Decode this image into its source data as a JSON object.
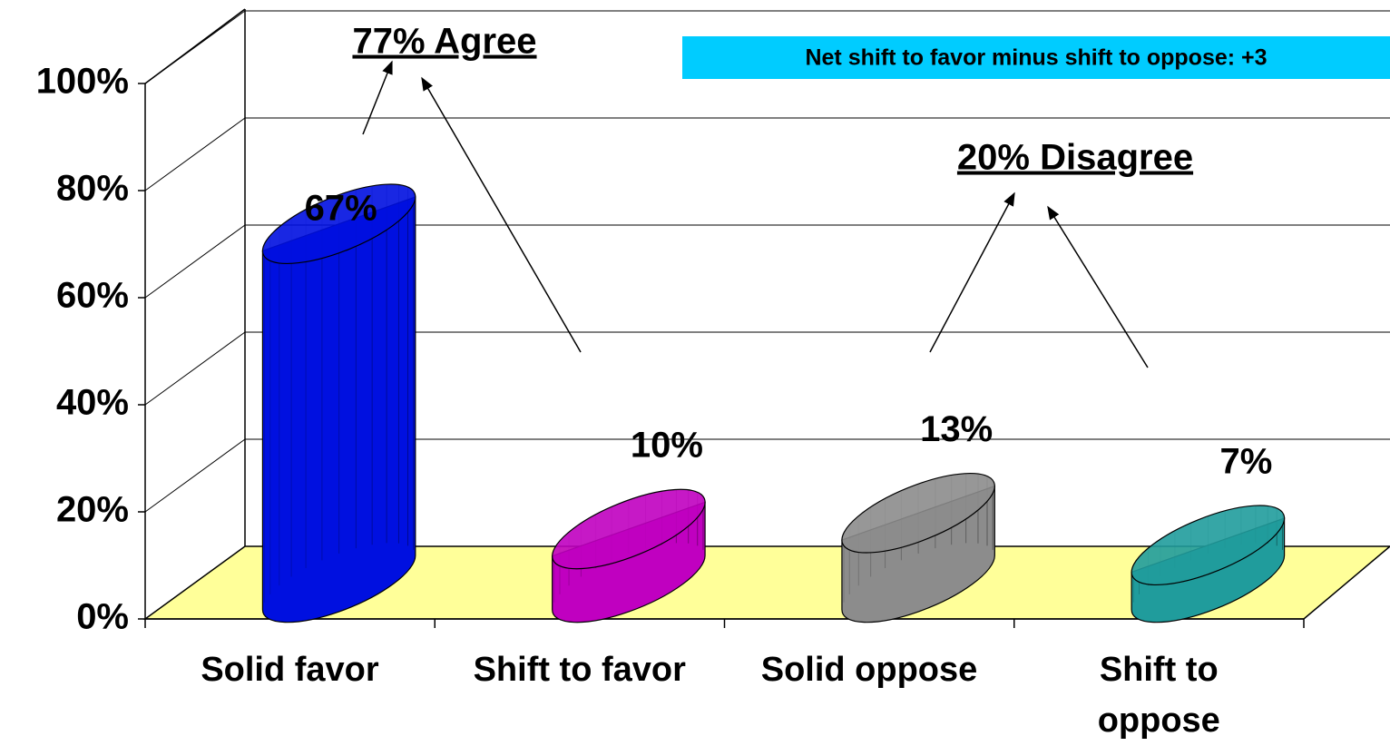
{
  "chart_data": {
    "type": "bar3d",
    "categories": [
      "Solid favor",
      "Shift to favor",
      "Solid oppose",
      "Shift to\noppose"
    ],
    "values": [
      67,
      10,
      13,
      7
    ],
    "value_labels": [
      "67%",
      "10%",
      "13%",
      "7%"
    ],
    "colors": [
      "#0010e0",
      "#c000c0",
      "#8c8c8c",
      "#209c9c"
    ],
    "ylim": [
      0,
      100
    ],
    "yticks": [
      {
        "value": 0,
        "label": "0%"
      },
      {
        "value": 20,
        "label": "20%"
      },
      {
        "value": 40,
        "label": "40%"
      },
      {
        "value": 60,
        "label": "60%"
      },
      {
        "value": 80,
        "label": "80%"
      },
      {
        "value": 100,
        "label": "100%"
      }
    ],
    "grid": true,
    "annotations": [
      "77% Agree",
      "20% Disagree",
      "Net shift to favor minus shift to oppose: +3"
    ]
  }
}
